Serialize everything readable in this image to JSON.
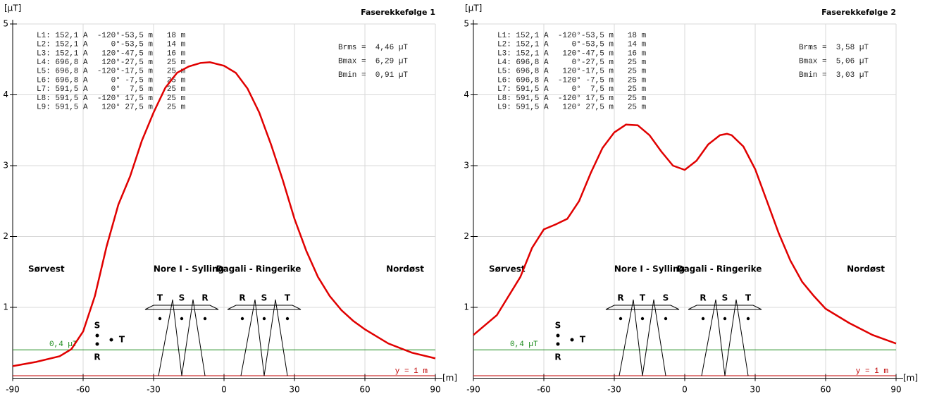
{
  "chart_data": [
    {
      "type": "line",
      "title": "Faserekkefølge 1",
      "y_label": "[µT]",
      "x_label": "[m]",
      "x": [
        -90,
        -80,
        -70,
        -65,
        -60,
        -55,
        -50,
        -45,
        -40,
        -35,
        -30,
        -25,
        -20,
        -15,
        -10,
        -6,
        0,
        5,
        10,
        15,
        20,
        25,
        30,
        35,
        40,
        45,
        50,
        55,
        60,
        70,
        80,
        90
      ],
      "values": [
        0.17,
        0.23,
        0.31,
        0.41,
        0.66,
        1.16,
        1.86,
        2.45,
        2.85,
        3.35,
        3.75,
        4.1,
        4.31,
        4.4,
        4.45,
        4.46,
        4.41,
        4.31,
        4.09,
        3.75,
        3.3,
        2.8,
        2.25,
        1.8,
        1.43,
        1.16,
        0.96,
        0.81,
        0.69,
        0.49,
        0.36,
        0.28
      ],
      "color": "#e00000",
      "xlim": [
        -90,
        90
      ],
      "ylim": [
        0,
        5
      ],
      "xticks": [
        -90,
        -60,
        -30,
        0,
        30,
        60,
        90
      ],
      "yticks": [
        1,
        2,
        3,
        4,
        5
      ],
      "grid": true,
      "conductors": [
        "L1: 152,1 A  -120°-53,5 m   18 m",
        "L2: 152,1 A     0°-53,5 m   14 m",
        "L3: 152,1 A   120°-47,5 m   16 m",
        "L4: 696,8 A   120°-27,5 m   25 m",
        "L5: 696,8 A  -120°-17,5 m   25 m",
        "L6: 696,8 A     0° -7,5 m   25 m",
        "L7: 591,5 A     0°  7,5 m   25 m",
        "L8: 591,5 A  -120° 17,5 m   25 m",
        "L9: 591,5 A   120° 27,5 m   25 m"
      ],
      "stats": [
        "Brms =  4,46 µT",
        "Bmax =  6,29 µT",
        "Bmin =  0,91 µT"
      ],
      "regions": [
        "Sørvest",
        "Nore I - Sylling",
        "Dagali - Ringerike",
        "Nordøst"
      ],
      "cable_phases": [
        "S",
        "T",
        "R"
      ],
      "tower1_phases": [
        "T",
        "S",
        "R"
      ],
      "tower2_phases": [
        "R",
        "S",
        "T"
      ],
      "reference_line": {
        "value": 0.4,
        "label": "0,4 µT",
        "color": "#1a8a1a"
      },
      "height_label": "y = 1 m"
    },
    {
      "type": "line",
      "title": "Faserekkefølge 2",
      "y_label": "[µT]",
      "x_label": "[m]",
      "x": [
        -90,
        -80,
        -70,
        -65,
        -60,
        -55,
        -50,
        -45,
        -40,
        -35,
        -30,
        -25,
        -20,
        -15,
        -10,
        -5,
        0,
        5,
        10,
        15,
        18,
        20,
        25,
        30,
        35,
        40,
        45,
        50,
        55,
        60,
        70,
        80,
        90
      ],
      "values": [
        0.61,
        0.89,
        1.43,
        1.84,
        2.1,
        2.17,
        2.25,
        2.5,
        2.9,
        3.25,
        3.47,
        3.58,
        3.57,
        3.43,
        3.2,
        3.0,
        2.94,
        3.07,
        3.3,
        3.43,
        3.45,
        3.43,
        3.27,
        2.95,
        2.5,
        2.05,
        1.66,
        1.36,
        1.16,
        0.98,
        0.78,
        0.61,
        0.49
      ],
      "color": "#e00000",
      "xlim": [
        -90,
        90
      ],
      "ylim": [
        0,
        5
      ],
      "xticks": [
        -90,
        -60,
        -30,
        0,
        30,
        60,
        90
      ],
      "yticks": [
        1,
        2,
        3,
        4,
        5
      ],
      "grid": true,
      "conductors": [
        "L1: 152,1 A  -120°-53,5 m   18 m",
        "L2: 152,1 A     0°-53,5 m   14 m",
        "L3: 152,1 A   120°-47,5 m   16 m",
        "L4: 696,8 A     0°-27,5 m   25 m",
        "L5: 696,8 A   120°-17,5 m   25 m",
        "L6: 696,8 A  -120° -7,5 m   25 m",
        "L7: 591,5 A     0°  7,5 m   25 m",
        "L8: 591,5 A  -120° 17,5 m   25 m",
        "L9: 591,5 A   120° 27,5 m   25 m"
      ],
      "stats": [
        "Brms =  3,58 µT",
        "Bmax =  5,06 µT",
        "Bmin =  3,03 µT"
      ],
      "regions": [
        "Sørvest",
        "Nore I - Sylling",
        "Dagali - Ringerike",
        "Nordøst"
      ],
      "cable_phases": [
        "S",
        "T",
        "R"
      ],
      "tower1_phases": [
        "R",
        "T",
        "S"
      ],
      "tower2_phases": [
        "R",
        "S",
        "T"
      ],
      "reference_line": {
        "value": 0.4,
        "label": "0,4 µT",
        "color": "#1a8a1a"
      },
      "height_label": "y = 1 m"
    }
  ]
}
